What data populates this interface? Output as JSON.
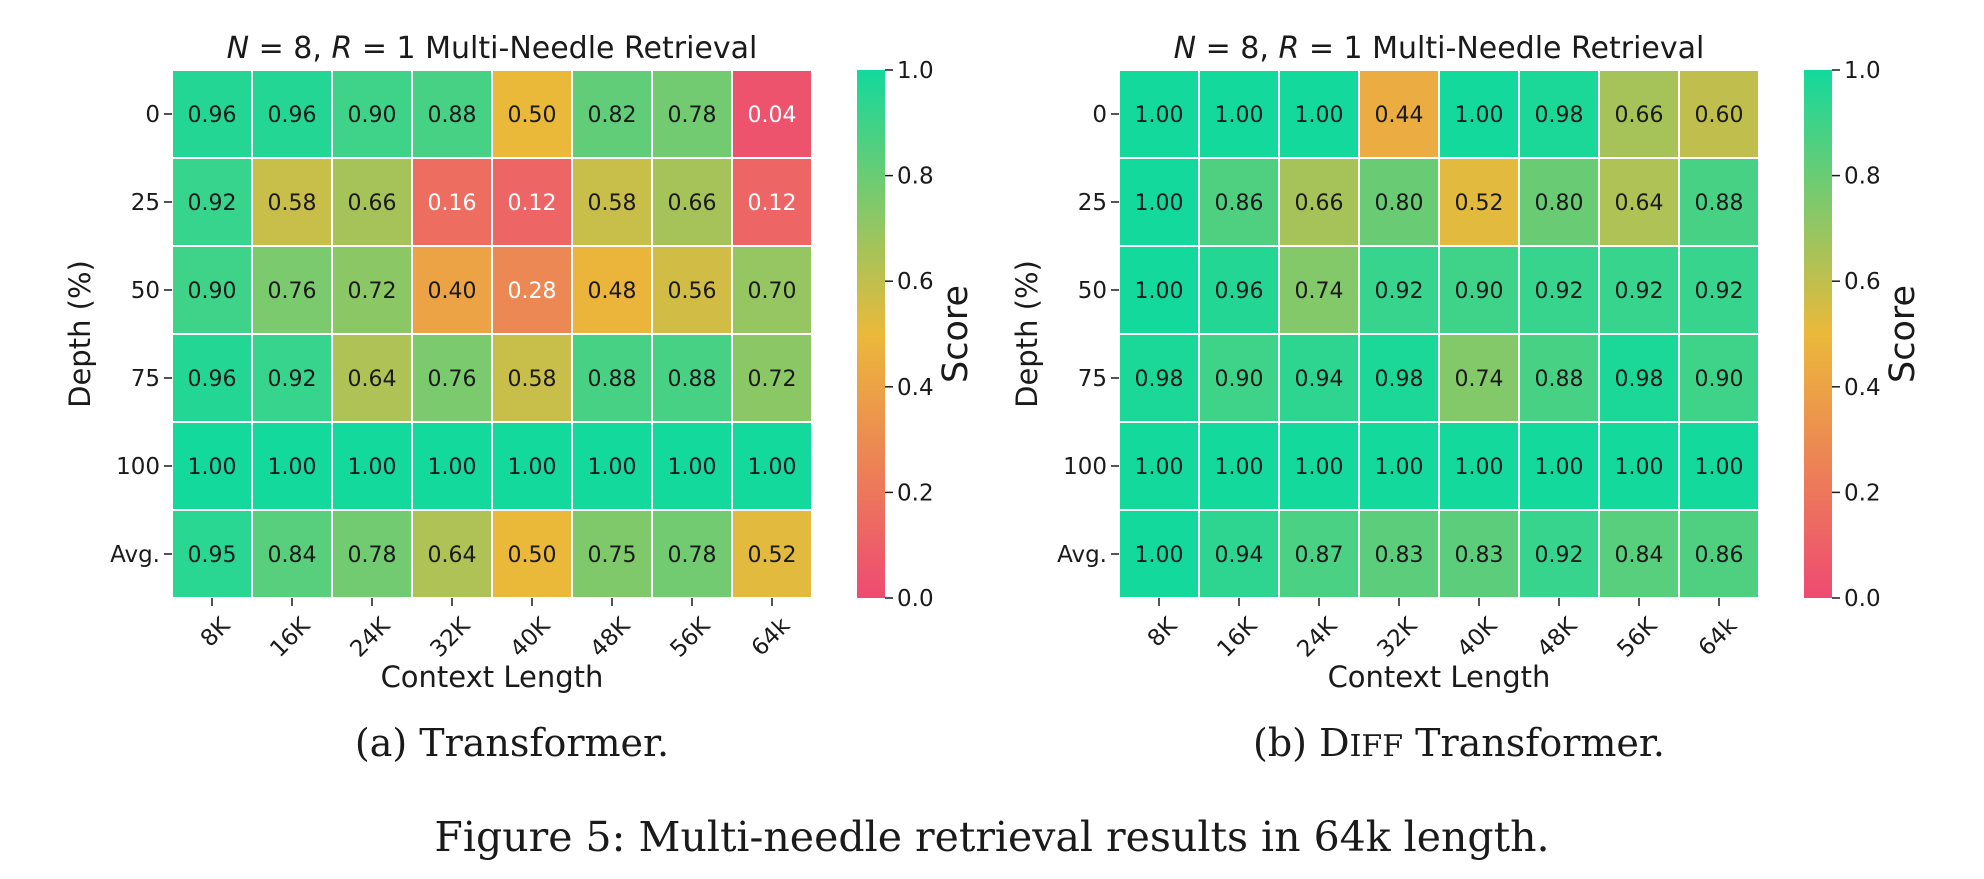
{
  "figure_caption": "Figure 5: Multi-needle retrieval results in 64k length.",
  "colors": {
    "scale_low": "#ee4a72",
    "scale_mid": "#ebb93a",
    "scale_high": "#13d99c",
    "cell_border": "#ffffff",
    "text_dark": "#1a1a1a",
    "text_light": "#ffffff"
  },
  "chart_data": [
    {
      "type": "heatmap",
      "title": "N = 8, R = 1 Multi-Needle Retrieval",
      "subcaption": "(a) Transformer.",
      "xlabel": "Context Length",
      "ylabel": "Depth (%)",
      "x_categories": [
        "8K",
        "16K",
        "24K",
        "32K",
        "40K",
        "48K",
        "56K",
        "64k"
      ],
      "y_categories": [
        "0",
        "25",
        "50",
        "75",
        "100",
        "Avg."
      ],
      "values": [
        [
          0.96,
          0.96,
          0.9,
          0.88,
          0.5,
          0.82,
          0.78,
          0.04
        ],
        [
          0.92,
          0.58,
          0.66,
          0.16,
          0.12,
          0.58,
          0.66,
          0.12
        ],
        [
          0.9,
          0.76,
          0.72,
          0.4,
          0.28,
          0.48,
          0.56,
          0.7
        ],
        [
          0.96,
          0.92,
          0.64,
          0.76,
          0.58,
          0.88,
          0.88,
          0.72
        ],
        [
          1.0,
          1.0,
          1.0,
          1.0,
          1.0,
          1.0,
          1.0,
          1.0
        ],
        [
          0.95,
          0.84,
          0.78,
          0.64,
          0.5,
          0.75,
          0.78,
          0.52
        ]
      ],
      "colorbar": {
        "label": "Score",
        "range": [
          0.0,
          1.0
        ],
        "ticks": [
          "0.0",
          "0.2",
          "0.4",
          "0.6",
          "0.8",
          "1.0"
        ]
      }
    },
    {
      "type": "heatmap",
      "title": "N = 8, R = 1 Multi-Needle Retrieval",
      "subcaption": "(b) DIFF Transformer.",
      "xlabel": "Context Length",
      "ylabel": "Depth (%)",
      "x_categories": [
        "8K",
        "16K",
        "24K",
        "32K",
        "40K",
        "48K",
        "56K",
        "64k"
      ],
      "y_categories": [
        "0",
        "25",
        "50",
        "75",
        "100",
        "Avg."
      ],
      "values": [
        [
          1.0,
          1.0,
          1.0,
          0.44,
          1.0,
          0.98,
          0.66,
          0.6
        ],
        [
          1.0,
          0.86,
          0.66,
          0.8,
          0.52,
          0.8,
          0.64,
          0.88
        ],
        [
          1.0,
          0.96,
          0.74,
          0.92,
          0.9,
          0.92,
          0.92,
          0.92
        ],
        [
          0.98,
          0.9,
          0.94,
          0.98,
          0.74,
          0.88,
          0.98,
          0.9
        ],
        [
          1.0,
          1.0,
          1.0,
          1.0,
          1.0,
          1.0,
          1.0,
          1.0
        ],
        [
          1.0,
          0.94,
          0.87,
          0.83,
          0.83,
          0.92,
          0.84,
          0.86
        ]
      ],
      "colorbar": {
        "label": "Score",
        "range": [
          0.0,
          1.0
        ],
        "ticks": [
          "0.0",
          "0.2",
          "0.4",
          "0.6",
          "0.8",
          "1.0"
        ]
      }
    }
  ]
}
